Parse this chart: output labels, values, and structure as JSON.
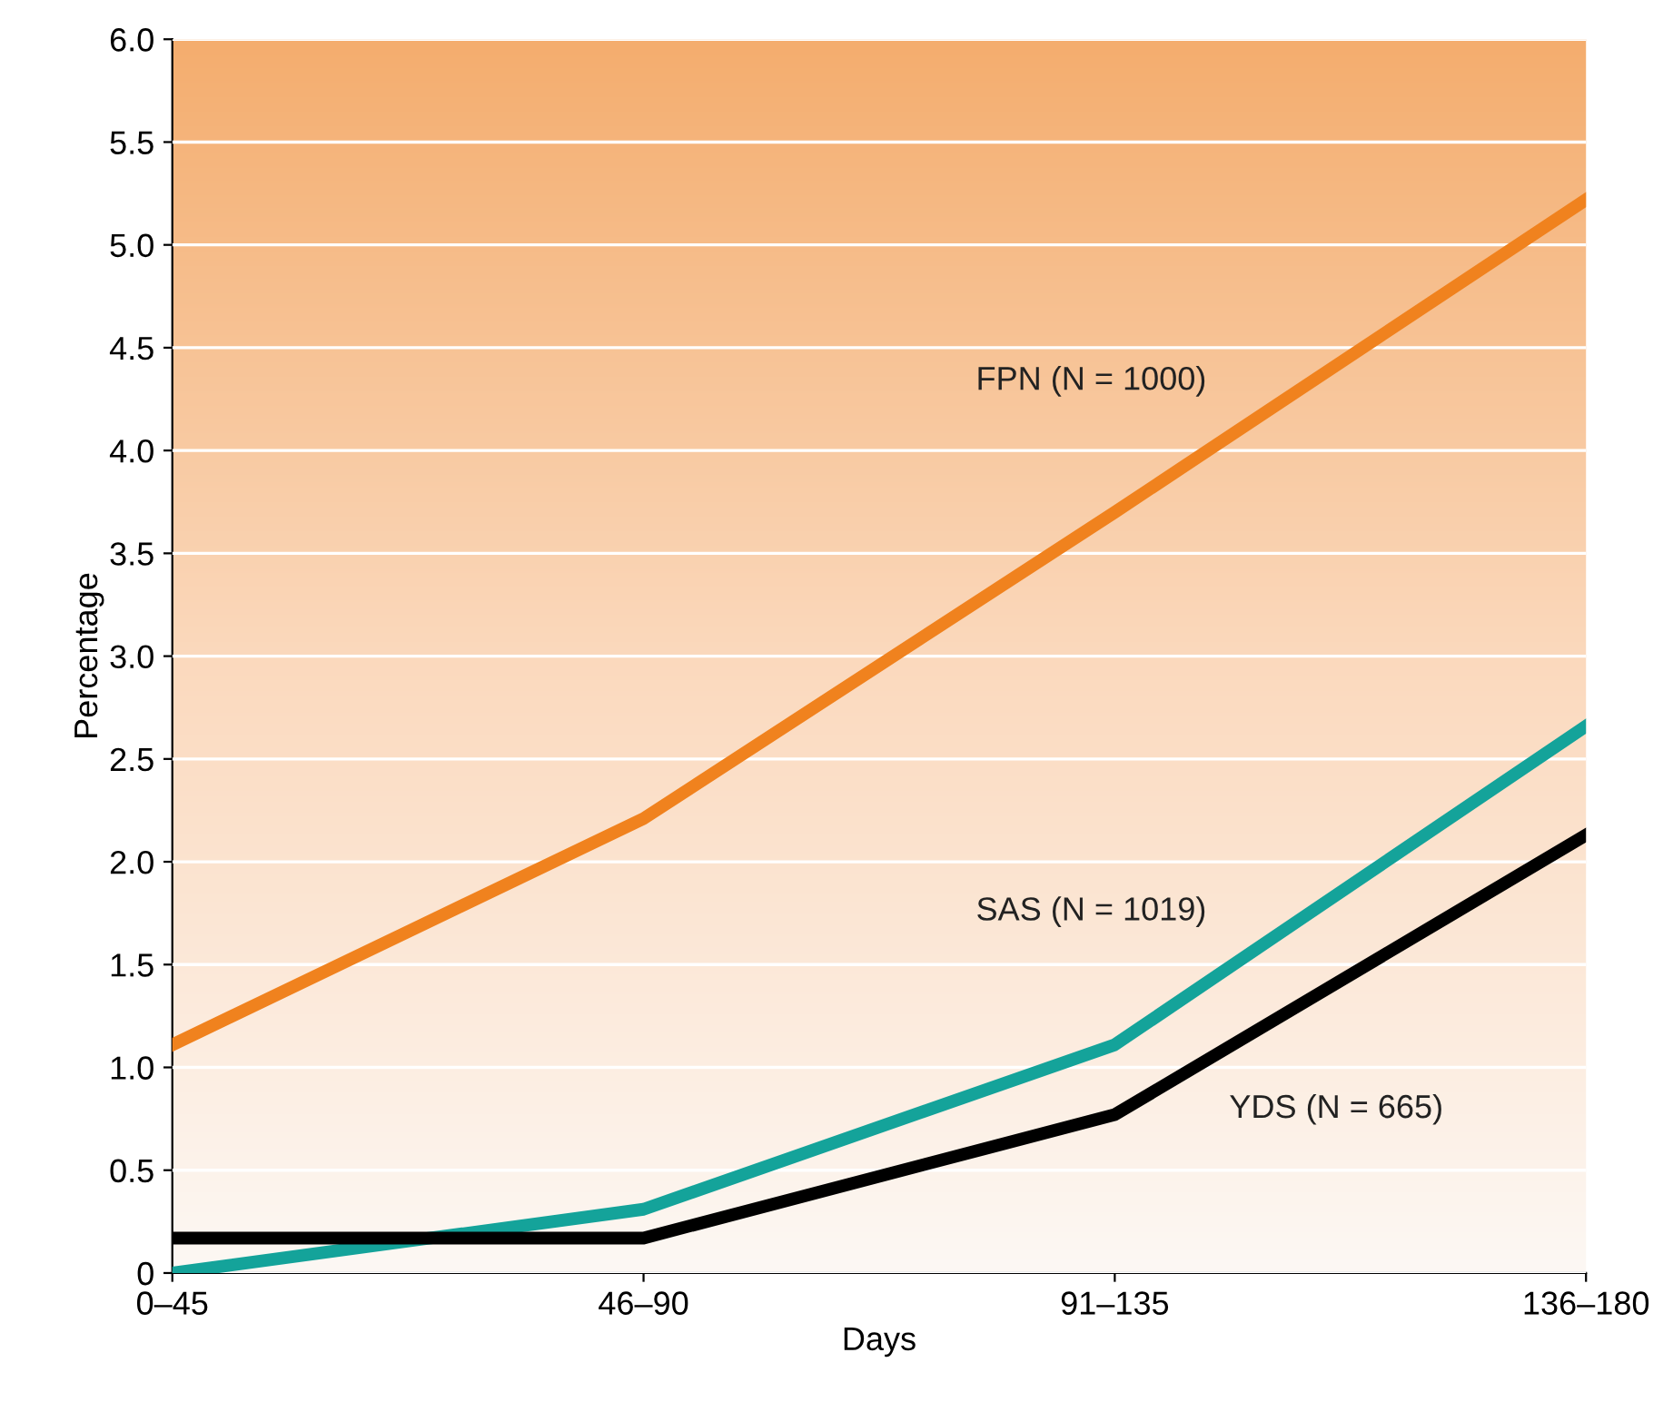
{
  "chart_data": {
    "type": "line",
    "xlabel": "Days",
    "ylabel": "Percentage",
    "categories": [
      "0–45",
      "46–90",
      "91–135",
      "136–180"
    ],
    "series": [
      {
        "name": "FPN (N = 1000)",
        "color": "#f0821e",
        "values": [
          1.11,
          2.21,
          3.7,
          5.22
        ]
      },
      {
        "name": "SAS (N = 1019)",
        "color": "#14a39a",
        "values": [
          0.0,
          0.31,
          1.11,
          2.66
        ]
      },
      {
        "name": "YDS (N = 665)",
        "color": "#000000",
        "values": [
          0.17,
          0.17,
          0.77,
          2.13
        ]
      }
    ],
    "ylim": [
      0,
      6
    ],
    "yticks": [
      0,
      0.5,
      {
        "value": 1,
        "label": "1.0"
      },
      1.5,
      {
        "value": 2,
        "label": "2.0"
      },
      2.5,
      {
        "value": 3,
        "label": "3.0"
      },
      3.5,
      {
        "value": 4,
        "label": "4.0"
      },
      4.5,
      {
        "value": 5,
        "label": "5.0"
      },
      5.5,
      {
        "value": 6,
        "label": "6.0"
      }
    ],
    "grid": "y",
    "marker": "none",
    "line_style": "solid"
  }
}
